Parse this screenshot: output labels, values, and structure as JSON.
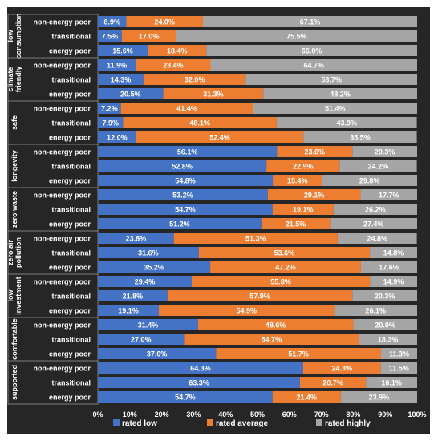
{
  "chart_data": {
    "type": "bar",
    "orientation": "horizontal",
    "stacked": true,
    "xlim": [
      0,
      100
    ],
    "xticks": [
      "0%",
      "10%",
      "20%",
      "30%",
      "40%",
      "50%",
      "60%",
      "70%",
      "80%",
      "90%",
      "100%"
    ],
    "colors": {
      "rated low": "#4472C4",
      "rated average": "#ED7D31",
      "rated highly": "#A5A5A5",
      "background": "#262626"
    },
    "legend": {
      "placement": "bottom",
      "entries": [
        "rated low",
        "rated average",
        "rated highly"
      ]
    },
    "groups": [
      {
        "label": "low consumption",
        "label_lines": [
          "low",
          "consumption"
        ],
        "rows": [
          {
            "category": "non-energy poor",
            "values": [
              8.9,
              24.0,
              67.1
            ],
            "labels": [
              "8.9%",
              "24.0%",
              "67.1%"
            ]
          },
          {
            "category": "transitional",
            "values": [
              7.5,
              17.0,
              75.5
            ],
            "labels": [
              "7.5%",
              "17.0%",
              "75.5%"
            ]
          },
          {
            "category": "energy poor",
            "values": [
              15.6,
              18.4,
              66.0
            ],
            "labels": [
              "15.6%",
              "18.4%",
              "66.0%"
            ]
          }
        ]
      },
      {
        "label": "climate friendly",
        "label_lines": [
          "climate",
          "friendly"
        ],
        "rows": [
          {
            "category": "non-energy poor",
            "values": [
              11.9,
              23.4,
              64.7
            ],
            "labels": [
              "11.9%",
              "23.4%",
              "64.7%"
            ]
          },
          {
            "category": "transitional",
            "values": [
              14.3,
              32.0,
              53.7
            ],
            "labels": [
              "14.3%",
              "32.0%",
              "53.7%"
            ]
          },
          {
            "category": "energy poor",
            "values": [
              20.5,
              31.3,
              48.2
            ],
            "labels": [
              "20.5%",
              "31.3%",
              "48.2%"
            ]
          }
        ]
      },
      {
        "label": "safe",
        "label_lines": [
          "safe"
        ],
        "rows": [
          {
            "category": "non-energy poor",
            "values": [
              7.2,
              41.4,
              51.4
            ],
            "labels": [
              "7.2%",
              "41.4%",
              "51.4%"
            ]
          },
          {
            "category": "transitional",
            "values": [
              7.9,
              48.1,
              43.9
            ],
            "labels": [
              "7.9%",
              "48.1%",
              "43.9%"
            ]
          },
          {
            "category": "energy poor",
            "values": [
              12.0,
              52.4,
              35.5
            ],
            "labels": [
              "12.0%",
              "52.4%",
              "35.5%"
            ]
          }
        ]
      },
      {
        "label": "longevity",
        "label_lines": [
          "longevity"
        ],
        "rows": [
          {
            "category": "non-energy poor",
            "values": [
              56.1,
              23.6,
              20.3
            ],
            "labels": [
              "56.1%",
              "23.6%",
              "20.3%"
            ]
          },
          {
            "category": "transitional",
            "values": [
              52.8,
              22.9,
              24.2
            ],
            "labels": [
              "52.8%",
              "22.9%",
              "24.2%"
            ]
          },
          {
            "category": "energy poor",
            "values": [
              54.8,
              15.4,
              29.8
            ],
            "labels": [
              "54.8%",
              "15.4%",
              "29.8%"
            ]
          }
        ]
      },
      {
        "label": "zero waste",
        "label_lines": [
          "zero waste"
        ],
        "rows": [
          {
            "category": "non-energy poor",
            "values": [
              53.2,
              29.1,
              17.7
            ],
            "labels": [
              "53.2%",
              "29.1%",
              "17.7%"
            ]
          },
          {
            "category": "transitional",
            "values": [
              54.7,
              19.1,
              26.2
            ],
            "labels": [
              "54.7%",
              "19.1%",
              "26.2%"
            ]
          },
          {
            "category": "energy poor",
            "values": [
              51.2,
              21.5,
              27.4
            ],
            "labels": [
              "51.2%",
              "21.5%",
              "27.4%"
            ]
          }
        ]
      },
      {
        "label": "zero air pollution",
        "label_lines": [
          "zero air",
          "pollution"
        ],
        "rows": [
          {
            "category": "non-energy poor",
            "values": [
              23.8,
              51.3,
              24.8
            ],
            "labels": [
              "23.8%",
              "51.3%",
              "24.8%"
            ]
          },
          {
            "category": "transitional",
            "values": [
              31.6,
              53.6,
              14.8
            ],
            "labels": [
              "31.6%",
              "53.6%",
              "14.8%"
            ]
          },
          {
            "category": "energy poor",
            "values": [
              35.2,
              47.2,
              17.6
            ],
            "labels": [
              "35.2%",
              "47.2%",
              "17.6%"
            ]
          }
        ]
      },
      {
        "label": "low investment",
        "label_lines": [
          "low",
          "investment"
        ],
        "rows": [
          {
            "category": "non-energy poor",
            "values": [
              29.4,
              55.8,
              14.9
            ],
            "labels": [
              "29.4%",
              "55.8%",
              "14.9%"
            ]
          },
          {
            "category": "transitional",
            "values": [
              21.8,
              57.9,
              20.3
            ],
            "labels": [
              "21.8%",
              "57.9%",
              "20.3%"
            ]
          },
          {
            "category": "energy poor",
            "values": [
              19.1,
              54.9,
              26.1
            ],
            "labels": [
              "19.1%",
              "54.9%",
              "26.1%"
            ]
          }
        ]
      },
      {
        "label": "comfortable",
        "label_lines": [
          "comfortable"
        ],
        "rows": [
          {
            "category": "non-energy poor",
            "values": [
              31.4,
              48.6,
              20.0
            ],
            "labels": [
              "31.4%",
              "48.6%",
              "20.0%"
            ]
          },
          {
            "category": "transitional",
            "values": [
              27.0,
              54.7,
              18.3
            ],
            "labels": [
              "27.0%",
              "54.7%",
              "18.3%"
            ]
          },
          {
            "category": "energy poor",
            "values": [
              37.0,
              51.7,
              11.3
            ],
            "labels": [
              "37.0%",
              "51.7%",
              "11.3%"
            ]
          }
        ]
      },
      {
        "label": "supported",
        "label_lines": [
          "supported"
        ],
        "rows": [
          {
            "category": "non-energy poor",
            "values": [
              64.3,
              24.3,
              11.5
            ],
            "labels": [
              "64.3%",
              "24.3%",
              "11.5%"
            ]
          },
          {
            "category": "transitional",
            "values": [
              63.3,
              20.7,
              16.1
            ],
            "labels": [
              "63.3%",
              "20.7%",
              "16.1%"
            ]
          },
          {
            "category": "energy poor",
            "values": [
              54.7,
              21.4,
              23.9
            ],
            "labels": [
              "54.7%",
              "21.4%",
              "23.9%"
            ]
          }
        ]
      }
    ]
  }
}
